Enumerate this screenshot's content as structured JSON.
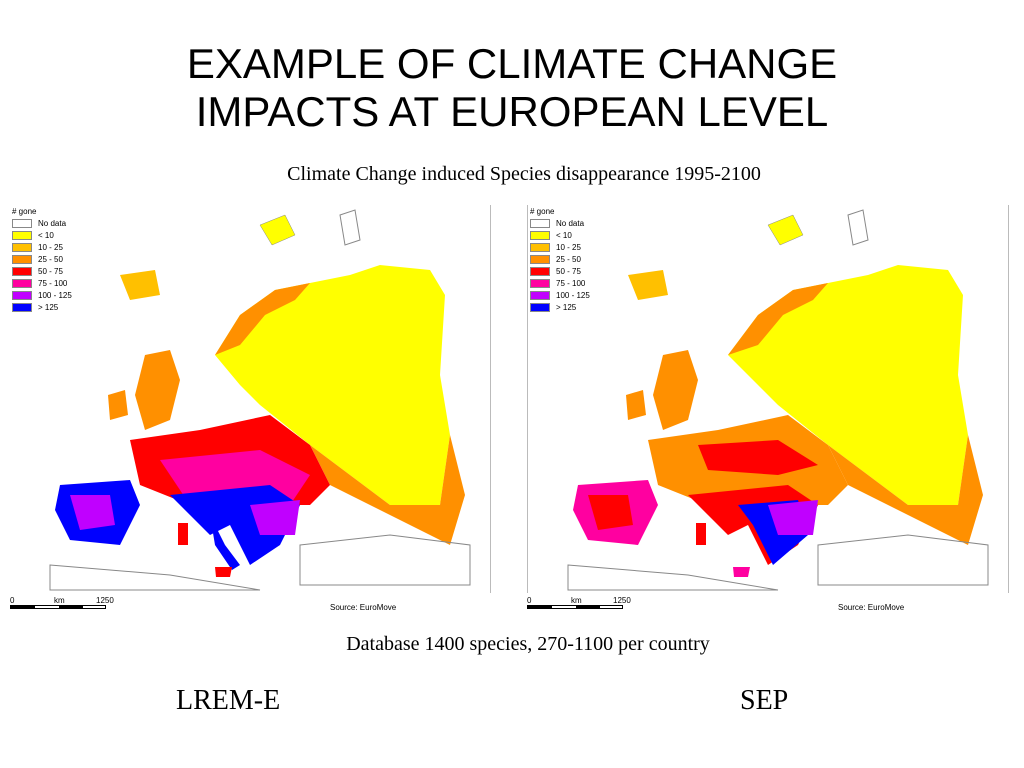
{
  "title_line1": "EXAMPLE OF CLIMATE CHANGE",
  "title_line2": "IMPACTS AT EUROPEAN LEVEL",
  "subtitle": "Climate Change induced Species disappearance 1995-2100",
  "legend": {
    "title": "# gone",
    "items": [
      {
        "label": "No data",
        "color": "#ffffff"
      },
      {
        "label": "< 10",
        "color": "#ffff00"
      },
      {
        "label": "10 - 25",
        "color": "#ffc000"
      },
      {
        "label": "25 - 50",
        "color": "#ff9000"
      },
      {
        "label": "50 - 75",
        "color": "#ff0000"
      },
      {
        "label": "75 - 100",
        "color": "#ff00a0"
      },
      {
        "label": "100 - 125",
        "color": "#c000ff"
      },
      {
        "label": "> 125",
        "color": "#0000ff"
      }
    ]
  },
  "scale": {
    "zero": "0",
    "unit": "km",
    "max": "1250"
  },
  "source": "Source: EuroMove",
  "database_note": "Database 1400 species, 270-1100 per country",
  "maps": [
    {
      "scenario": "LREM-E"
    },
    {
      "scenario": "SEP"
    }
  ]
}
